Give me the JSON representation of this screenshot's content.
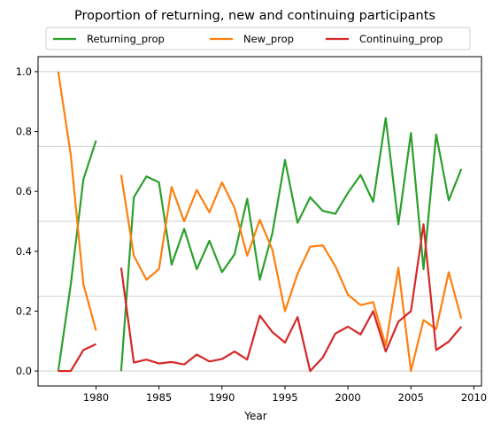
{
  "chart_data": {
    "type": "line",
    "title": "Proportion of returning, new and continuing participants",
    "xlabel": "Year",
    "ylabel": "",
    "xlim": [
      1975.4,
      2010.6
    ],
    "ylim": [
      -0.05,
      1.05
    ],
    "xticks": [
      1980,
      1985,
      1990,
      1995,
      2000,
      2005,
      2010
    ],
    "yticks": [
      0.0,
      0.2,
      0.4,
      0.6,
      0.8,
      1.0
    ],
    "ytick_labels": [
      "0.0",
      "0.2",
      "0.4",
      "0.6",
      "0.8",
      "1.0"
    ],
    "hlines": [
      0.0,
      0.25,
      0.5,
      0.75,
      1.0
    ],
    "legend_position": "top-center, above the plot",
    "series": [
      {
        "name": "Returning_prop",
        "color": "#2ca02c",
        "points": [
          [
            1977,
            0.0
          ],
          [
            1978,
            0.29
          ],
          [
            1979,
            0.64
          ],
          [
            1980,
            0.77
          ],
          [
            1982,
            0.0
          ],
          [
            1983,
            0.58
          ],
          [
            1984,
            0.65
          ],
          [
            1985,
            0.63
          ],
          [
            1986,
            0.355
          ],
          [
            1987,
            0.475
          ],
          [
            1988,
            0.34
          ],
          [
            1989,
            0.435
          ],
          [
            1990,
            0.33
          ],
          [
            1991,
            0.39
          ],
          [
            1992,
            0.575
          ],
          [
            1993,
            0.305
          ],
          [
            1994,
            0.46
          ],
          [
            1995,
            0.705
          ],
          [
            1996,
            0.495
          ],
          [
            1997,
            0.58
          ],
          [
            1998,
            0.535
          ],
          [
            1999,
            0.525
          ],
          [
            2000,
            0.595
          ],
          [
            2001,
            0.655
          ],
          [
            2002,
            0.565
          ],
          [
            2003,
            0.845
          ],
          [
            2004,
            0.49
          ],
          [
            2005,
            0.795
          ],
          [
            2006,
            0.34
          ],
          [
            2007,
            0.79
          ],
          [
            2008,
            0.57
          ],
          [
            2009,
            0.675
          ]
        ]
      },
      {
        "name": "New_prop",
        "color": "#ff7f0e",
        "points": [
          [
            1977,
            1.0
          ],
          [
            1978,
            0.72
          ],
          [
            1979,
            0.29
          ],
          [
            1980,
            0.135
          ],
          [
            1982,
            0.655
          ],
          [
            1983,
            0.385
          ],
          [
            1984,
            0.305
          ],
          [
            1985,
            0.34
          ],
          [
            1986,
            0.615
          ],
          [
            1987,
            0.5
          ],
          [
            1988,
            0.605
          ],
          [
            1989,
            0.53
          ],
          [
            1990,
            0.63
          ],
          [
            1991,
            0.545
          ],
          [
            1992,
            0.385
          ],
          [
            1993,
            0.505
          ],
          [
            1994,
            0.405
          ],
          [
            1995,
            0.2
          ],
          [
            1996,
            0.325
          ],
          [
            1997,
            0.415
          ],
          [
            1998,
            0.42
          ],
          [
            1999,
            0.35
          ],
          [
            2000,
            0.255
          ],
          [
            2001,
            0.22
          ],
          [
            2002,
            0.23
          ],
          [
            2003,
            0.085
          ],
          [
            2004,
            0.345
          ],
          [
            2005,
            0.0
          ],
          [
            2006,
            0.17
          ],
          [
            2007,
            0.14
          ],
          [
            2008,
            0.33
          ],
          [
            2009,
            0.175
          ]
        ]
      },
      {
        "name": "Continuing_prop",
        "color": "#d62728",
        "points": [
          [
            1977,
            0.0
          ],
          [
            1978,
            0.0
          ],
          [
            1979,
            0.07
          ],
          [
            1980,
            0.09
          ],
          [
            1982,
            0.345
          ],
          [
            1983,
            0.028
          ],
          [
            1984,
            0.038
          ],
          [
            1985,
            0.025
          ],
          [
            1986,
            0.03
          ],
          [
            1987,
            0.022
          ],
          [
            1988,
            0.055
          ],
          [
            1989,
            0.032
          ],
          [
            1990,
            0.04
          ],
          [
            1991,
            0.065
          ],
          [
            1992,
            0.038
          ],
          [
            1993,
            0.185
          ],
          [
            1994,
            0.13
          ],
          [
            1995,
            0.095
          ],
          [
            1996,
            0.18
          ],
          [
            1997,
            0.0
          ],
          [
            1998,
            0.045
          ],
          [
            1999,
            0.125
          ],
          [
            2000,
            0.148
          ],
          [
            2001,
            0.122
          ],
          [
            2002,
            0.2
          ],
          [
            2003,
            0.065
          ],
          [
            2004,
            0.165
          ],
          [
            2005,
            0.2
          ],
          [
            2006,
            0.49
          ],
          [
            2007,
            0.07
          ],
          [
            2008,
            0.098
          ],
          [
            2009,
            0.148
          ]
        ]
      }
    ]
  }
}
